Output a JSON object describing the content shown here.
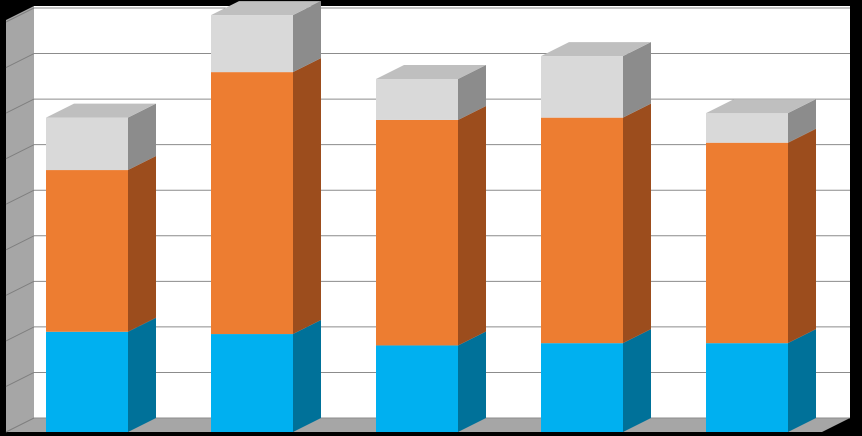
{
  "chart_data": {
    "type": "bar",
    "stacked": true,
    "three_d": true,
    "categories": [
      "",
      "",
      "",
      "",
      ""
    ],
    "series": [
      {
        "color": "#00b0f0",
        "side_color": "#007199",
        "values": [
          2.2,
          2.15,
          1.9,
          1.95,
          1.95
        ]
      },
      {
        "color": "#ed7d31",
        "side_color": "#9c4d1d",
        "values": [
          3.55,
          5.75,
          4.95,
          4.95,
          4.4
        ]
      },
      {
        "color": "#d9d9d9",
        "side_color": "#8c8c8c",
        "values": [
          1.15,
          1.25,
          0.9,
          1.35,
          0.65
        ]
      }
    ],
    "ylim": [
      0,
      9
    ],
    "grid": true,
    "legend": "none",
    "title": "",
    "xlabel": "",
    "ylabel": ""
  }
}
